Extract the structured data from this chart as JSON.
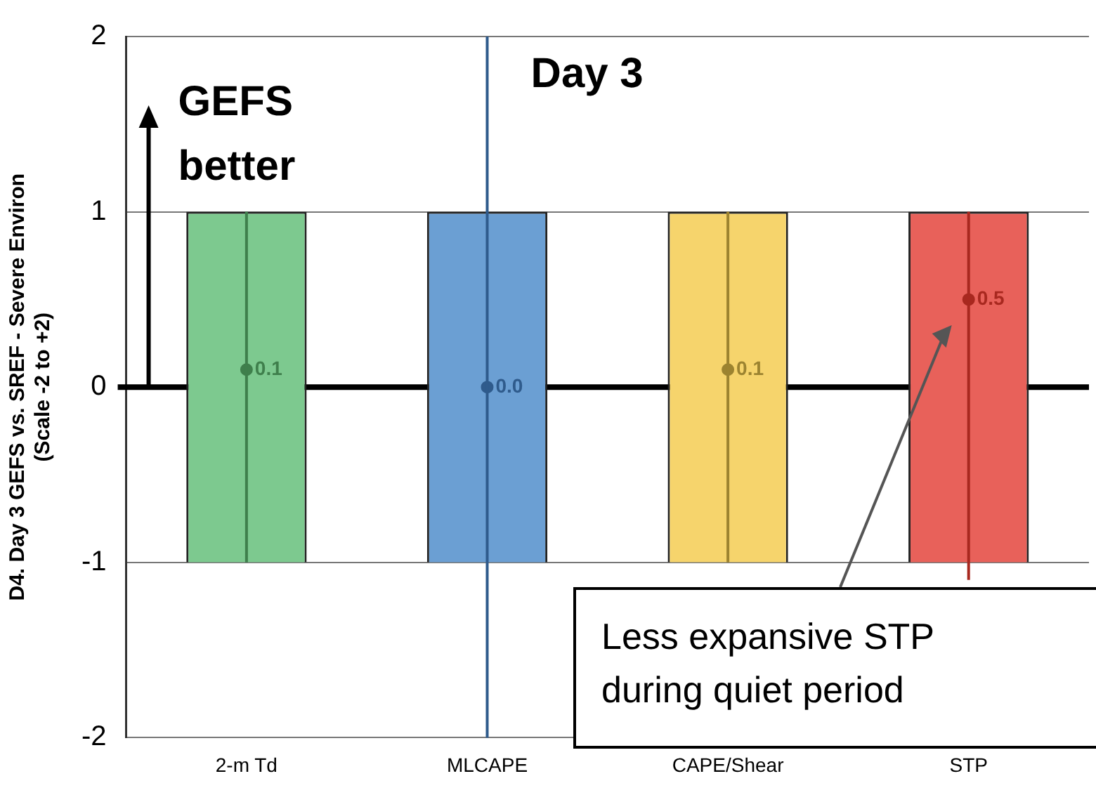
{
  "chart_data": {
    "type": "bar",
    "ylabel": "D4. Day 3 GEFS vs. SREF - Severe Environ\n(Scale -2 to +2)",
    "categories": [
      "2-m Td",
      "MLCAPE",
      "CAPE/Shear",
      "STP"
    ],
    "series": [
      {
        "base": [
          -1,
          -1,
          -1,
          -1
        ],
        "values": [
          2,
          2,
          2,
          2
        ],
        "colors": [
          "#7dc98f",
          "#6b9fd3",
          "#f6d46c",
          "#e8615a"
        ]
      },
      {
        "type": "scatter",
        "x": [
          "2-m Td",
          "MLCAPE",
          "CAPE/Shear",
          "STP"
        ],
        "values": [
          0.1,
          0.0,
          0.1,
          0.5
        ],
        "value_labels": [
          "0.1",
          "0.0",
          "0.1",
          "0.5"
        ],
        "colors": [
          "#3f7f4c",
          "#2f5b8c",
          "#9c8330",
          "#a8281f"
        ],
        "errors": [
          [
            -1,
            1
          ],
          [
            -2,
            2
          ],
          [
            -1,
            1
          ],
          [
            -1.1,
            1
          ]
        ]
      }
    ],
    "ylim": [
      -2,
      2
    ],
    "yticks": [
      -2,
      -1,
      0,
      1,
      2
    ],
    "grid": "y",
    "legend": false,
    "marker": "circle",
    "ref_lines": [
      {
        "axis": "y",
        "value": 0,
        "color": "#000000"
      }
    ],
    "annotations": [
      "GEFS better",
      "Day 3",
      "Less expansive STP during quiet period"
    ]
  }
}
